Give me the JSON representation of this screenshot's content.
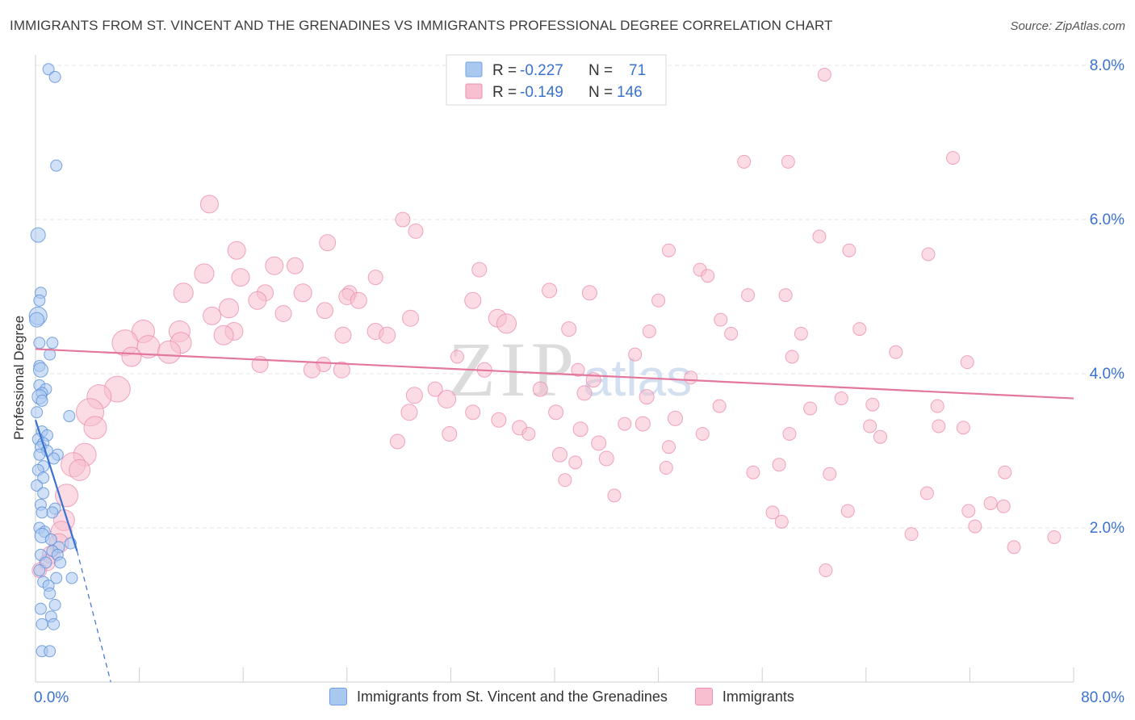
{
  "title": "IMMIGRANTS FROM ST. VINCENT AND THE GRENADINES VS IMMIGRANTS PROFESSIONAL DEGREE CORRELATION CHART",
  "source": "Source: ZipAtlas.com",
  "watermark": {
    "zip": "ZIP",
    "atlas": "atlas"
  },
  "stats_legend": {
    "rows": [
      {
        "r_label": "R =",
        "r_value": "-0.227",
        "n_label": "N =",
        "n_value": "71",
        "color": "#a9c8f0",
        "stroke": "#6f9fe0"
      },
      {
        "r_label": "R =",
        "r_value": "-0.149",
        "n_label": "N =",
        "n_value": "146",
        "color": "#f7bfd0",
        "stroke": "#ec8fae"
      }
    ]
  },
  "colors": {
    "blue_fill": "#a9c8f0",
    "blue_stroke": "#5b8fd8",
    "blue_line": "#3a72d0",
    "pink_fill": "#f7bfd0",
    "pink_stroke": "#ec8fae",
    "pink_line": "#e4779d",
    "axis_label": "#3a72d0",
    "grid": "#e4e4e4"
  },
  "chart_data": {
    "type": "scatter",
    "title": "IMMIGRANTS FROM ST. VINCENT AND THE GRENADINES VS IMMIGRANTS PROFESSIONAL DEGREE CORRELATION CHART",
    "xlabel": "",
    "ylabel": "Professional Degree",
    "xlim": [
      0,
      80
    ],
    "ylim": [
      0,
      8.2
    ],
    "x_tick_labels": [
      "0.0%",
      "80.0%"
    ],
    "y_ticks": [
      2,
      4,
      6,
      8
    ],
    "y_tick_labels": [
      "2.0%",
      "4.0%",
      "6.0%",
      "8.0%"
    ],
    "grid": true,
    "series": [
      {
        "name": "Immigrants from St. Vincent and the Grenadines",
        "color": "#a9c8f0",
        "trend": {
          "x": [
            0,
            3.2
          ],
          "y": [
            3.4,
            1.7
          ],
          "dashed_to": [
            5.8,
            0
          ]
        },
        "points": [
          [
            1.0,
            7.95,
            7
          ],
          [
            1.5,
            7.85,
            7
          ],
          [
            1.6,
            6.7,
            7
          ],
          [
            0.2,
            5.8,
            9
          ],
          [
            0.4,
            5.05,
            7
          ],
          [
            0.3,
            4.95,
            7
          ],
          [
            0.2,
            4.75,
            11
          ],
          [
            0.1,
            4.7,
            9
          ],
          [
            0.3,
            4.4,
            7
          ],
          [
            1.3,
            4.4,
            7
          ],
          [
            1.1,
            4.25,
            7
          ],
          [
            0.3,
            4.1,
            7
          ],
          [
            0.4,
            4.05,
            9
          ],
          [
            0.3,
            3.85,
            7
          ],
          [
            0.8,
            3.8,
            7
          ],
          [
            0.5,
            3.75,
            7
          ],
          [
            0.3,
            3.7,
            9
          ],
          [
            0.5,
            3.65,
            7
          ],
          [
            0.1,
            3.5,
            7
          ],
          [
            2.6,
            3.45,
            7
          ],
          [
            0.5,
            3.25,
            7
          ],
          [
            0.9,
            3.2,
            7
          ],
          [
            0.2,
            3.15,
            7
          ],
          [
            0.6,
            3.1,
            7
          ],
          [
            0.4,
            3.05,
            7
          ],
          [
            0.9,
            3.0,
            7
          ],
          [
            1.7,
            2.95,
            7
          ],
          [
            0.3,
            2.95,
            7
          ],
          [
            1.4,
            2.9,
            7
          ],
          [
            0.6,
            2.8,
            7
          ],
          [
            0.2,
            2.75,
            7
          ],
          [
            0.6,
            2.65,
            7
          ],
          [
            0.1,
            2.55,
            7
          ],
          [
            0.6,
            2.45,
            7
          ],
          [
            0.4,
            2.3,
            7
          ],
          [
            1.5,
            2.25,
            7
          ],
          [
            1.3,
            2.2,
            7
          ],
          [
            0.5,
            2.2,
            7
          ],
          [
            0.3,
            2.0,
            7
          ],
          [
            0.7,
            1.95,
            7
          ],
          [
            0.5,
            1.9,
            9
          ],
          [
            1.2,
            1.85,
            7
          ],
          [
            2.7,
            1.8,
            7
          ],
          [
            1.8,
            1.75,
            7
          ],
          [
            1.3,
            1.7,
            7
          ],
          [
            1.7,
            1.65,
            7
          ],
          [
            0.4,
            1.65,
            7
          ],
          [
            0.8,
            1.55,
            7
          ],
          [
            1.9,
            1.55,
            7
          ],
          [
            0.3,
            1.45,
            7
          ],
          [
            2.8,
            1.35,
            7
          ],
          [
            1.6,
            1.35,
            7
          ],
          [
            0.6,
            1.3,
            7
          ],
          [
            1.0,
            1.25,
            7
          ],
          [
            1.1,
            1.15,
            7
          ],
          [
            1.5,
            1.0,
            7
          ],
          [
            0.4,
            0.95,
            7
          ],
          [
            1.2,
            0.85,
            7
          ],
          [
            1.4,
            0.75,
            7
          ],
          [
            0.5,
            0.75,
            7
          ],
          [
            0.5,
            0.4,
            7
          ],
          [
            1.1,
            0.4,
            7
          ]
        ]
      },
      {
        "name": "Immigrants",
        "color": "#f7bfd0",
        "trend": {
          "x": [
            0,
            80
          ],
          "y": [
            4.32,
            3.68
          ]
        },
        "points": [
          [
            60.8,
            7.88,
            8
          ],
          [
            58.0,
            6.75,
            8
          ],
          [
            54.6,
            6.75,
            8
          ],
          [
            70.7,
            6.8,
            8
          ],
          [
            13.4,
            6.2,
            11
          ],
          [
            28.3,
            6.0,
            9
          ],
          [
            29.3,
            5.85,
            9
          ],
          [
            22.5,
            5.7,
            10
          ],
          [
            60.4,
            5.78,
            8
          ],
          [
            62.7,
            5.6,
            8
          ],
          [
            48.8,
            5.6,
            8
          ],
          [
            68.8,
            5.55,
            8
          ],
          [
            15.5,
            5.6,
            11
          ],
          [
            18.4,
            5.4,
            11
          ],
          [
            20.0,
            5.4,
            10
          ],
          [
            34.2,
            5.35,
            9
          ],
          [
            51.2,
            5.35,
            8
          ],
          [
            51.8,
            5.27,
            8
          ],
          [
            13.0,
            5.3,
            12
          ],
          [
            15.8,
            5.25,
            11
          ],
          [
            26.2,
            5.25,
            9
          ],
          [
            11.4,
            5.05,
            12
          ],
          [
            17.7,
            5.05,
            10
          ],
          [
            20.6,
            5.05,
            11
          ],
          [
            24.2,
            5.05,
            9
          ],
          [
            24.0,
            5.0,
            10
          ],
          [
            39.6,
            5.08,
            9
          ],
          [
            42.7,
            5.05,
            9
          ],
          [
            33.7,
            4.95,
            10
          ],
          [
            54.9,
            5.02,
            8
          ],
          [
            57.8,
            5.02,
            8
          ],
          [
            48.0,
            4.95,
            8
          ],
          [
            24.9,
            4.95,
            10
          ],
          [
            17.1,
            4.95,
            11
          ],
          [
            14.9,
            4.85,
            12
          ],
          [
            22.3,
            4.82,
            10
          ],
          [
            13.6,
            4.75,
            11
          ],
          [
            19.1,
            4.78,
            10
          ],
          [
            28.9,
            4.72,
            10
          ],
          [
            35.6,
            4.72,
            11
          ],
          [
            36.3,
            4.65,
            12
          ],
          [
            52.8,
            4.7,
            8
          ],
          [
            11.1,
            4.55,
            13
          ],
          [
            15.3,
            4.55,
            11
          ],
          [
            23.7,
            4.5,
            10
          ],
          [
            41.1,
            4.58,
            9
          ],
          [
            8.3,
            4.55,
            14
          ],
          [
            14.5,
            4.5,
            12
          ],
          [
            26.2,
            4.55,
            10
          ],
          [
            27.1,
            4.5,
            10
          ],
          [
            47.3,
            4.55,
            8
          ],
          [
            53.6,
            4.52,
            8
          ],
          [
            59.0,
            4.52,
            8
          ],
          [
            63.5,
            4.58,
            8
          ],
          [
            11.2,
            4.4,
            13
          ],
          [
            6.9,
            4.4,
            16
          ],
          [
            8.7,
            4.35,
            14
          ],
          [
            10.3,
            4.28,
            14
          ],
          [
            7.4,
            4.22,
            12
          ],
          [
            32.5,
            4.22,
            8
          ],
          [
            46.2,
            4.25,
            8
          ],
          [
            58.3,
            4.22,
            8
          ],
          [
            66.3,
            4.28,
            8
          ],
          [
            71.8,
            4.15,
            8
          ],
          [
            17.3,
            4.12,
            10
          ],
          [
            22.2,
            4.12,
            9
          ],
          [
            21.3,
            4.05,
            10
          ],
          [
            23.6,
            4.05,
            10
          ],
          [
            34.6,
            4.05,
            9
          ],
          [
            41.8,
            4.05,
            8
          ],
          [
            43.0,
            3.92,
            9
          ],
          [
            50.5,
            3.95,
            8
          ],
          [
            6.3,
            3.8,
            16
          ],
          [
            4.9,
            3.7,
            15
          ],
          [
            30.8,
            3.8,
            9
          ],
          [
            29.2,
            3.72,
            10
          ],
          [
            38.9,
            3.8,
            9
          ],
          [
            42.3,
            3.75,
            9
          ],
          [
            31.7,
            3.67,
            11
          ],
          [
            47.1,
            3.7,
            9
          ],
          [
            52.7,
            3.58,
            8
          ],
          [
            62.1,
            3.68,
            8
          ],
          [
            64.5,
            3.6,
            8
          ],
          [
            59.7,
            3.55,
            8
          ],
          [
            69.5,
            3.58,
            8
          ],
          [
            4.2,
            3.5,
            17
          ],
          [
            28.8,
            3.5,
            10
          ],
          [
            33.7,
            3.5,
            9
          ],
          [
            40.1,
            3.5,
            9
          ],
          [
            46.8,
            3.35,
            9
          ],
          [
            49.3,
            3.42,
            9
          ],
          [
            45.4,
            3.35,
            8
          ],
          [
            4.6,
            3.3,
            14
          ],
          [
            35.7,
            3.4,
            9
          ],
          [
            37.3,
            3.3,
            9
          ],
          [
            42.0,
            3.28,
            9
          ],
          [
            64.3,
            3.32,
            8
          ],
          [
            69.6,
            3.32,
            8
          ],
          [
            71.5,
            3.3,
            8
          ],
          [
            31.9,
            3.22,
            9
          ],
          [
            38.0,
            3.22,
            8
          ],
          [
            51.4,
            3.22,
            8
          ],
          [
            58.1,
            3.22,
            8
          ],
          [
            65.1,
            3.18,
            8
          ],
          [
            27.9,
            3.12,
            9
          ],
          [
            43.4,
            3.1,
            9
          ],
          [
            48.8,
            3.05,
            8
          ],
          [
            3.8,
            2.95,
            14
          ],
          [
            40.4,
            2.95,
            9
          ],
          [
            44.0,
            2.9,
            9
          ],
          [
            2.9,
            2.82,
            15
          ],
          [
            3.4,
            2.75,
            13
          ],
          [
            41.6,
            2.85,
            8
          ],
          [
            57.3,
            2.82,
            8
          ],
          [
            48.6,
            2.78,
            8
          ],
          [
            55.3,
            2.72,
            8
          ],
          [
            61.2,
            2.7,
            8
          ],
          [
            74.7,
            2.72,
            8
          ],
          [
            40.8,
            2.62,
            8
          ],
          [
            2.4,
            2.42,
            14
          ],
          [
            44.6,
            2.42,
            8
          ],
          [
            68.7,
            2.45,
            8
          ],
          [
            73.6,
            2.32,
            8
          ],
          [
            74.6,
            2.28,
            8
          ],
          [
            62.6,
            2.22,
            8
          ],
          [
            71.9,
            2.22,
            8
          ],
          [
            56.8,
            2.2,
            8
          ],
          [
            2.2,
            2.1,
            13
          ],
          [
            57.5,
            2.08,
            8
          ],
          [
            72.4,
            2.02,
            8
          ],
          [
            2.0,
            1.95,
            13
          ],
          [
            67.5,
            1.92,
            8
          ],
          [
            75.4,
            1.75,
            8
          ],
          [
            78.5,
            1.88,
            8
          ],
          [
            1.8,
            1.8,
            12
          ],
          [
            1.2,
            1.65,
            11
          ],
          [
            0.9,
            1.55,
            10
          ],
          [
            0.3,
            1.45,
            9
          ],
          [
            60.9,
            1.45,
            8
          ]
        ]
      }
    ]
  }
}
